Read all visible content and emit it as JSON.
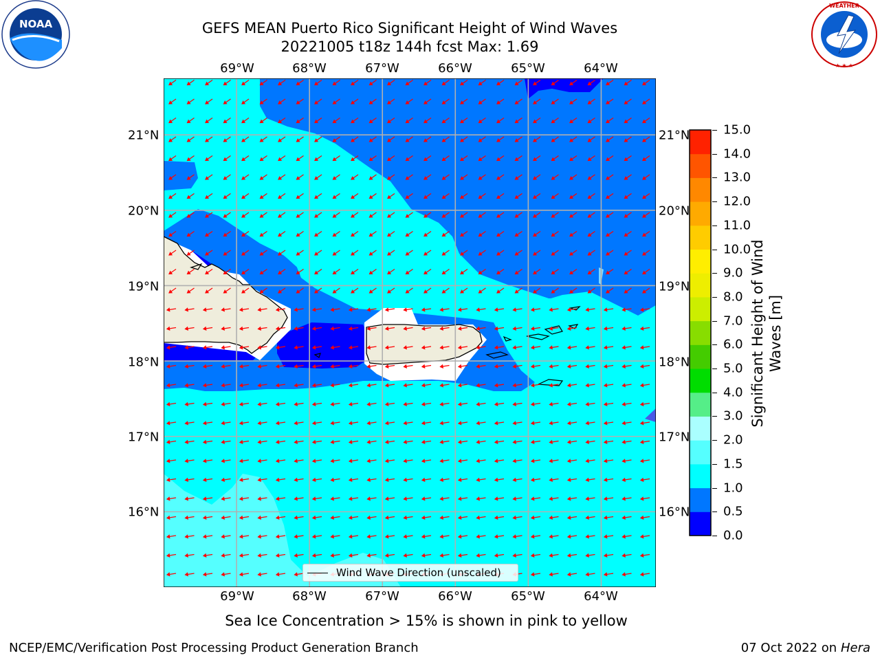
{
  "header": {
    "title_line1": "GEFS MEAN Puerto Rico Significant Height of Wind Waves",
    "title_line2": "20221005 t18z 144h fcst   Max: 1.69"
  },
  "logos": {
    "left": {
      "name": "noaa-logo",
      "text": "NOAA",
      "ring_text": "NATIONAL OCEANIC AND ATMOSPHERIC ADMINISTRATION · U.S. DEPARTMENT OF COMMERCE"
    },
    "right": {
      "name": "nws-logo",
      "ring_text": "NATIONAL WEATHER SERVICE"
    }
  },
  "map": {
    "lon_labels": [
      "69°W",
      "68°W",
      "67°W",
      "66°W",
      "65°W",
      "64°W"
    ],
    "lat_labels": [
      "21°N",
      "20°N",
      "19°N",
      "18°N",
      "17°N",
      "16°N"
    ],
    "lon_range": [
      -70.0,
      -63.25
    ],
    "lat_range": [
      15.0,
      21.75
    ],
    "max_value": 1.69,
    "wave_direction": "toward the west-southwest",
    "legend_label": "Wind Wave Direction (unscaled)",
    "colors": {
      "land": "#efeddc",
      "coast": "#000000",
      "vector": "#ff0000",
      "grid": "#b0b0b0"
    }
  },
  "colorbar": {
    "label": "Significant Height of Wind Waves [m]",
    "ticks": [
      "15.0",
      "14.0",
      "13.0",
      "12.0",
      "11.0",
      "10.0",
      "9.0",
      "8.0",
      "7.0",
      "6.0",
      "5.0",
      "4.0",
      "3.0",
      "2.0",
      "1.5",
      "1.0",
      "0.5",
      "0.0"
    ],
    "levels": [
      0,
      0.5,
      1.0,
      1.5,
      2.0,
      3.0,
      4.0,
      5.0,
      6.0,
      7.0,
      8.0,
      9.0,
      10.0,
      11.0,
      12.0,
      13.0,
      14.0,
      15.0
    ],
    "colors": [
      "#0000ff",
      "#0077ff",
      "#00ffff",
      "#55ffff",
      "#aaffff",
      "#55ee88",
      "#00dd00",
      "#44cc00",
      "#88dd00",
      "#ccee00",
      "#eeee00",
      "#ffee00",
      "#ffcc00",
      "#ffaa00",
      "#ff8800",
      "#ff5500",
      "#ff2200"
    ]
  },
  "notes": {
    "sea_ice": "Sea Ice Concentration > 15% is shown in pink to yellow",
    "producer": "NCEP/EMC/Verification Post Processing Product Generation Branch",
    "date": "07 Oct 2022 on",
    "host": "Hera"
  }
}
